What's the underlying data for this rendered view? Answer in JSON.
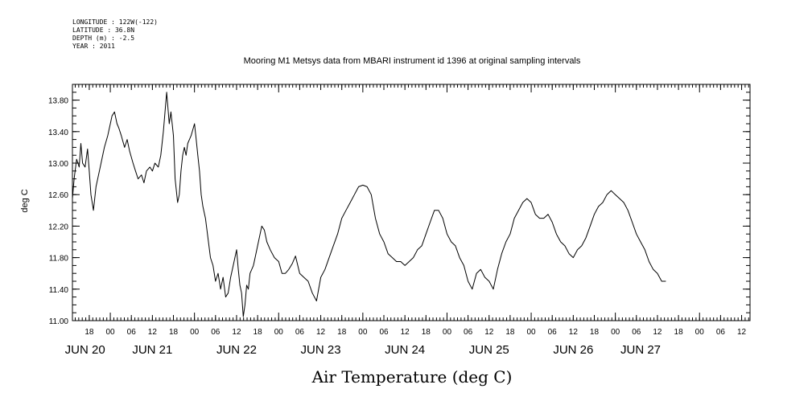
{
  "header": {
    "lines": [
      "LONGITUDE : 122W(-122)",
      "LATITUDE : 36.8N",
      "DEPTH (m) : -2.5",
      "YEAR : 2011"
    ]
  },
  "chart_data": {
    "type": "line",
    "title": "Mooring M1 Metsys data from MBARI instrument id 1396 at original sampling intervals",
    "xlabel": "Air Temperature (deg C)",
    "ylabel": "deg C",
    "ylim": [
      11.0,
      14.0
    ],
    "xlim": [
      -0.45,
      7.6
    ],
    "yticks": [
      11.0,
      11.4,
      11.8,
      12.2,
      12.6,
      13.0,
      13.4,
      13.8
    ],
    "ytick_labels": [
      "11.00",
      "11.40",
      "11.80",
      "12.20",
      "12.60",
      "13.00",
      "13.40",
      "13.80"
    ],
    "hour_ticks": [
      {
        "x": -0.25,
        "label": "18"
      },
      {
        "x": 0.0,
        "label": "00"
      },
      {
        "x": 0.25,
        "label": "06"
      },
      {
        "x": 0.5,
        "label": "12"
      },
      {
        "x": 0.75,
        "label": "18"
      },
      {
        "x": 1.0,
        "label": "00"
      },
      {
        "x": 1.25,
        "label": "06"
      },
      {
        "x": 1.5,
        "label": "12"
      },
      {
        "x": 1.75,
        "label": "18"
      },
      {
        "x": 2.0,
        "label": "00"
      },
      {
        "x": 2.25,
        "label": "06"
      },
      {
        "x": 2.5,
        "label": "12"
      },
      {
        "x": 2.75,
        "label": "18"
      },
      {
        "x": 3.0,
        "label": "00"
      },
      {
        "x": 3.25,
        "label": "06"
      },
      {
        "x": 3.5,
        "label": "12"
      },
      {
        "x": 3.75,
        "label": "18"
      },
      {
        "x": 4.0,
        "label": "00"
      },
      {
        "x": 4.25,
        "label": "06"
      },
      {
        "x": 4.5,
        "label": "12"
      },
      {
        "x": 4.75,
        "label": "18"
      },
      {
        "x": 5.0,
        "label": "00"
      },
      {
        "x": 5.25,
        "label": "06"
      },
      {
        "x": 5.5,
        "label": "12"
      },
      {
        "x": 5.75,
        "label": "18"
      },
      {
        "x": 6.0,
        "label": "00"
      },
      {
        "x": 6.25,
        "label": "06"
      },
      {
        "x": 6.5,
        "label": "12"
      },
      {
        "x": 6.75,
        "label": "18"
      },
      {
        "x": 7.0,
        "label": "00"
      },
      {
        "x": 7.25,
        "label": "06"
      },
      {
        "x": 7.5,
        "label": "12"
      }
    ],
    "day_labels": [
      {
        "x": -0.3,
        "label": "JUN 20"
      },
      {
        "x": 0.5,
        "label": "JUN 21"
      },
      {
        "x": 1.5,
        "label": "JUN 22"
      },
      {
        "x": 2.5,
        "label": "JUN 23"
      },
      {
        "x": 3.5,
        "label": "JUN 24"
      },
      {
        "x": 4.5,
        "label": "JUN 25"
      },
      {
        "x": 5.5,
        "label": "JUN 26"
      },
      {
        "x": 6.3,
        "label": "JUN 27"
      }
    ],
    "x": [
      -0.45,
      -0.43,
      -0.4,
      -0.37,
      -0.35,
      -0.33,
      -0.3,
      -0.27,
      -0.25,
      -0.23,
      -0.2,
      -0.17,
      -0.13,
      -0.1,
      -0.07,
      -0.03,
      0.0,
      0.02,
      0.05,
      0.08,
      0.1,
      0.13,
      0.17,
      0.2,
      0.23,
      0.27,
      0.3,
      0.33,
      0.37,
      0.4,
      0.43,
      0.47,
      0.5,
      0.53,
      0.57,
      0.6,
      0.63,
      0.67,
      0.7,
      0.72,
      0.75,
      0.77,
      0.8,
      0.82,
      0.84,
      0.86,
      0.88,
      0.9,
      0.92,
      0.94,
      0.96,
      1.0,
      1.02,
      1.04,
      1.06,
      1.08,
      1.1,
      1.13,
      1.16,
      1.19,
      1.22,
      1.25,
      1.28,
      1.31,
      1.34,
      1.37,
      1.4,
      1.43,
      1.46,
      1.48,
      1.5,
      1.52,
      1.54,
      1.56,
      1.58,
      1.6,
      1.62,
      1.64,
      1.66,
      1.68,
      1.7,
      1.72,
      1.75,
      1.78,
      1.8,
      1.83,
      1.86,
      1.9,
      1.95,
      2.0,
      2.04,
      2.08,
      2.12,
      2.16,
      2.2,
      2.25,
      2.3,
      2.35,
      2.4,
      2.45,
      2.5,
      2.55,
      2.6,
      2.65,
      2.7,
      2.75,
      2.8,
      2.85,
      2.9,
      2.95,
      3.0,
      3.05,
      3.1,
      3.15,
      3.2,
      3.25,
      3.3,
      3.35,
      3.4,
      3.45,
      3.5,
      3.55,
      3.6,
      3.65,
      3.7,
      3.75,
      3.8,
      3.85,
      3.9,
      3.95,
      4.0,
      4.05,
      4.1,
      4.15,
      4.2,
      4.25,
      4.3,
      4.35,
      4.4,
      4.45,
      4.5,
      4.55,
      4.6,
      4.65,
      4.7,
      4.75,
      4.8,
      4.85,
      4.9,
      4.95,
      5.0,
      5.05,
      5.1,
      5.15,
      5.2,
      5.25,
      5.3,
      5.35,
      5.4,
      5.45,
      5.5,
      5.55,
      5.6,
      5.65,
      5.7,
      5.75,
      5.8,
      5.85,
      5.9,
      5.95,
      6.0,
      6.05,
      6.1,
      6.15,
      6.2,
      6.25,
      6.3,
      6.35,
      6.4,
      6.45,
      6.5,
      6.55,
      6.6
    ],
    "series": [
      {
        "values": [
          12.55,
          12.8,
          13.05,
          12.95,
          13.25,
          13.0,
          12.95,
          13.18,
          12.9,
          12.6,
          12.4,
          12.7,
          12.9,
          13.05,
          13.2,
          13.35,
          13.5,
          13.6,
          13.65,
          13.5,
          13.45,
          13.35,
          13.2,
          13.3,
          13.15,
          13.0,
          12.9,
          12.8,
          12.85,
          12.75,
          12.9,
          12.95,
          12.9,
          13.0,
          12.95,
          13.1,
          13.4,
          13.9,
          13.5,
          13.65,
          13.35,
          12.8,
          12.5,
          12.6,
          12.9,
          13.1,
          13.2,
          13.1,
          13.25,
          13.3,
          13.35,
          13.5,
          13.3,
          13.1,
          12.9,
          12.6,
          12.45,
          12.3,
          12.05,
          11.8,
          11.7,
          11.5,
          11.6,
          11.4,
          11.55,
          11.3,
          11.35,
          11.55,
          11.7,
          11.8,
          11.9,
          11.65,
          11.45,
          11.35,
          11.05,
          11.2,
          11.45,
          11.4,
          11.6,
          11.65,
          11.7,
          11.8,
          11.95,
          12.1,
          12.2,
          12.15,
          12.0,
          11.9,
          11.8,
          11.75,
          11.6,
          11.6,
          11.65,
          11.72,
          11.82,
          11.6,
          11.55,
          11.5,
          11.35,
          11.25,
          11.55,
          11.65,
          11.8,
          11.95,
          12.1,
          12.3,
          12.4,
          12.5,
          12.6,
          12.7,
          12.72,
          12.7,
          12.6,
          12.3,
          12.1,
          12.0,
          11.85,
          11.8,
          11.75,
          11.75,
          11.7,
          11.75,
          11.8,
          11.9,
          11.95,
          12.1,
          12.25,
          12.4,
          12.4,
          12.3,
          12.1,
          12.0,
          11.95,
          11.8,
          11.7,
          11.5,
          11.4,
          11.6,
          11.65,
          11.55,
          11.5,
          11.4,
          11.65,
          11.85,
          12.0,
          12.1,
          12.3,
          12.4,
          12.5,
          12.55,
          12.5,
          12.35,
          12.3,
          12.3,
          12.35,
          12.25,
          12.1,
          12.0,
          11.95,
          11.85,
          11.8,
          11.9,
          11.95,
          12.05,
          12.2,
          12.35,
          12.45,
          12.5,
          12.6,
          12.65,
          12.6,
          12.55,
          12.5,
          12.4,
          12.25,
          12.1,
          12.0,
          11.9,
          11.75,
          11.65,
          11.6,
          11.5,
          11.5
        ]
      }
    ],
    "grid": false,
    "legend": "none"
  }
}
